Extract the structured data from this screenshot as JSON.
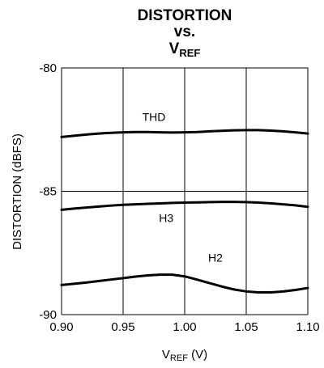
{
  "chart_data": {
    "type": "line",
    "title_lines": [
      "DISTORTION",
      "vs."
    ],
    "title_var": {
      "main": "V",
      "sub": "REF"
    },
    "xlabel": {
      "main": "V",
      "sub": "REF",
      "unit": " (V)"
    },
    "ylabel": "DISTORTION (dBFS)",
    "xlim": [
      0.9,
      1.1
    ],
    "ylim": [
      -90,
      -80
    ],
    "xticks": [
      "0.90",
      "0.95",
      "1.00",
      "1.05",
      "1.10"
    ],
    "xtick_values": [
      0.9,
      0.95,
      1.0,
      1.05,
      1.1
    ],
    "yticks": [
      "-80",
      "-85",
      "-90"
    ],
    "ytick_values": [
      -80,
      -85,
      -90
    ],
    "grid": true,
    "series": [
      {
        "name": "THD",
        "x": [
          0.9,
          0.91,
          0.92,
          0.93,
          0.94,
          0.95,
          0.96,
          0.97,
          0.98,
          0.99,
          1.0,
          1.01,
          1.02,
          1.03,
          1.04,
          1.05,
          1.06,
          1.07,
          1.08,
          1.09,
          1.1
        ],
        "y": [
          -82.8,
          -82.75,
          -82.7,
          -82.66,
          -82.63,
          -82.61,
          -82.6,
          -82.6,
          -82.61,
          -82.62,
          -82.61,
          -82.6,
          -82.57,
          -82.55,
          -82.53,
          -82.52,
          -82.52,
          -82.54,
          -82.57,
          -82.61,
          -82.66
        ]
      },
      {
        "name": "H3",
        "x": [
          0.9,
          0.91,
          0.92,
          0.93,
          0.94,
          0.95,
          0.96,
          0.97,
          0.98,
          0.99,
          1.0,
          1.01,
          1.02,
          1.03,
          1.04,
          1.05,
          1.06,
          1.07,
          1.08,
          1.09,
          1.1
        ],
        "y": [
          -85.75,
          -85.7,
          -85.66,
          -85.62,
          -85.58,
          -85.55,
          -85.53,
          -85.51,
          -85.49,
          -85.47,
          -85.46,
          -85.45,
          -85.44,
          -85.43,
          -85.43,
          -85.44,
          -85.46,
          -85.49,
          -85.53,
          -85.57,
          -85.63
        ]
      },
      {
        "name": "H2",
        "x": [
          0.9,
          0.91,
          0.92,
          0.93,
          0.94,
          0.95,
          0.96,
          0.97,
          0.98,
          0.99,
          1.0,
          1.01,
          1.02,
          1.03,
          1.04,
          1.05,
          1.06,
          1.07,
          1.08,
          1.09,
          1.1
        ],
        "y": [
          -88.8,
          -88.75,
          -88.7,
          -88.64,
          -88.58,
          -88.52,
          -88.46,
          -88.41,
          -88.38,
          -88.38,
          -88.45,
          -88.58,
          -88.72,
          -88.86,
          -88.98,
          -89.06,
          -89.1,
          -89.1,
          -89.06,
          -89.0,
          -88.92
        ]
      }
    ],
    "series_label_anchor": [
      {
        "name": "THD",
        "x": 0.975,
        "y": -82.15
      },
      {
        "name": "H3",
        "x": 0.985,
        "y": -86.25
      },
      {
        "name": "H2",
        "x": 1.025,
        "y": -87.85
      }
    ]
  }
}
